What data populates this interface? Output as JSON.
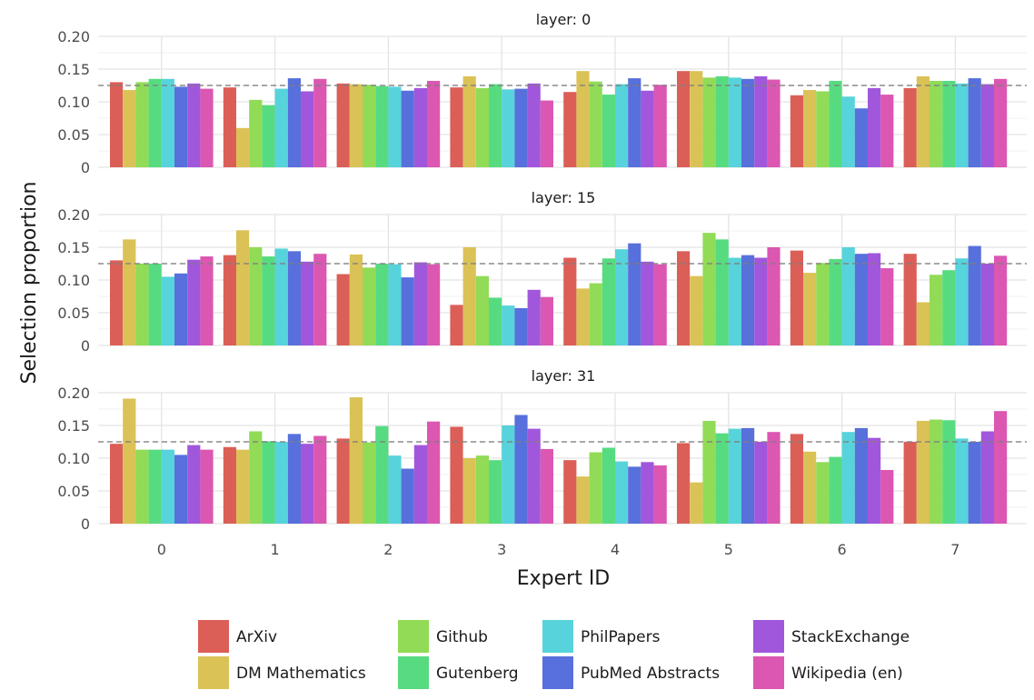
{
  "chart_data": {
    "type": "bar",
    "title": "",
    "xlabel": "Expert ID",
    "ylabel": "Selection proportion",
    "ylim": [
      0,
      0.2
    ],
    "y_ticks": [
      0,
      0.05,
      0.1,
      0.15,
      0.2
    ],
    "y_tick_labels": [
      "0",
      "0.05",
      "0.10",
      "0.15",
      "0.20"
    ],
    "reference_line": 0.125,
    "categories": [
      "0",
      "1",
      "2",
      "3",
      "4",
      "5",
      "6",
      "7"
    ],
    "series_meta": [
      {
        "name": "ArXiv",
        "color": "#db5f57"
      },
      {
        "name": "DM Mathematics",
        "color": "#dbc257"
      },
      {
        "name": "Github",
        "color": "#91db57"
      },
      {
        "name": "Gutenberg",
        "color": "#57db80"
      },
      {
        "name": "PhilPapers",
        "color": "#57d3db"
      },
      {
        "name": "PubMed Abstracts",
        "color": "#5770db"
      },
      {
        "name": "StackExchange",
        "color": "#a157db"
      },
      {
        "name": "Wikipedia (en)",
        "color": "#db57b2"
      }
    ],
    "legend_position": "bottom",
    "facets": [
      {
        "title": "layer: 0",
        "series": [
          {
            "name": "ArXiv",
            "values": [
              0.13,
              0.122,
              0.128,
              0.122,
              0.115,
              0.147,
              0.11,
              0.121
            ]
          },
          {
            "name": "DM Mathematics",
            "values": [
              0.118,
              0.06,
              0.127,
              0.139,
              0.147,
              0.147,
              0.118,
              0.139
            ]
          },
          {
            "name": "Github",
            "values": [
              0.13,
              0.103,
              0.126,
              0.121,
              0.131,
              0.137,
              0.116,
              0.132
            ]
          },
          {
            "name": "Gutenberg",
            "values": [
              0.135,
              0.095,
              0.124,
              0.127,
              0.111,
              0.139,
              0.132,
              0.132
            ]
          },
          {
            "name": "PhilPapers",
            "values": [
              0.135,
              0.12,
              0.123,
              0.119,
              0.127,
              0.137,
              0.108,
              0.128
            ]
          },
          {
            "name": "PubMed Abstracts",
            "values": [
              0.123,
              0.136,
              0.117,
              0.12,
              0.136,
              0.135,
              0.09,
              0.136
            ]
          },
          {
            "name": "StackExchange",
            "values": [
              0.128,
              0.116,
              0.121,
              0.128,
              0.117,
              0.139,
              0.121,
              0.127
            ]
          },
          {
            "name": "Wikipedia (en)",
            "values": [
              0.12,
              0.135,
              0.132,
              0.102,
              0.126,
              0.134,
              0.111,
              0.135
            ]
          }
        ]
      },
      {
        "title": "layer: 15",
        "series": [
          {
            "name": "ArXiv",
            "values": [
              0.13,
              0.138,
              0.109,
              0.062,
              0.134,
              0.144,
              0.145,
              0.14
            ]
          },
          {
            "name": "DM Mathematics",
            "values": [
              0.162,
              0.176,
              0.139,
              0.15,
              0.087,
              0.106,
              0.111,
              0.066
            ]
          },
          {
            "name": "Github",
            "values": [
              0.125,
              0.15,
              0.119,
              0.106,
              0.095,
              0.172,
              0.126,
              0.108
            ]
          },
          {
            "name": "Gutenberg",
            "values": [
              0.125,
              0.136,
              0.125,
              0.073,
              0.133,
              0.162,
              0.132,
              0.115
            ]
          },
          {
            "name": "PhilPapers",
            "values": [
              0.105,
              0.148,
              0.124,
              0.061,
              0.147,
              0.134,
              0.15,
              0.133
            ]
          },
          {
            "name": "PubMed Abstracts",
            "values": [
              0.11,
              0.144,
              0.104,
              0.057,
              0.156,
              0.138,
              0.14,
              0.152
            ]
          },
          {
            "name": "StackExchange",
            "values": [
              0.131,
              0.128,
              0.127,
              0.085,
              0.128,
              0.134,
              0.141,
              0.125
            ]
          },
          {
            "name": "Wikipedia (en)",
            "values": [
              0.136,
              0.14,
              0.124,
              0.074,
              0.124,
              0.15,
              0.118,
              0.137
            ]
          }
        ]
      },
      {
        "title": "layer: 31",
        "series": [
          {
            "name": "ArXiv",
            "values": [
              0.122,
              0.117,
              0.13,
              0.148,
              0.097,
              0.123,
              0.137,
              0.125
            ]
          },
          {
            "name": "DM Mathematics",
            "values": [
              0.191,
              0.113,
              0.193,
              0.1,
              0.072,
              0.063,
              0.11,
              0.157
            ]
          },
          {
            "name": "Github",
            "values": [
              0.113,
              0.141,
              0.124,
              0.104,
              0.109,
              0.157,
              0.094,
              0.159
            ]
          },
          {
            "name": "Gutenberg",
            "values": [
              0.113,
              0.126,
              0.149,
              0.097,
              0.116,
              0.138,
              0.102,
              0.158
            ]
          },
          {
            "name": "PhilPapers",
            "values": [
              0.113,
              0.125,
              0.104,
              0.15,
              0.095,
              0.145,
              0.14,
              0.13
            ]
          },
          {
            "name": "PubMed Abstracts",
            "values": [
              0.105,
              0.137,
              0.084,
              0.166,
              0.087,
              0.146,
              0.146,
              0.125
            ]
          },
          {
            "name": "StackExchange",
            "values": [
              0.12,
              0.122,
              0.12,
              0.145,
              0.094,
              0.125,
              0.131,
              0.141
            ]
          },
          {
            "name": "Wikipedia (en)",
            "values": [
              0.113,
              0.134,
              0.156,
              0.114,
              0.089,
              0.14,
              0.082,
              0.172
            ]
          }
        ]
      }
    ]
  }
}
